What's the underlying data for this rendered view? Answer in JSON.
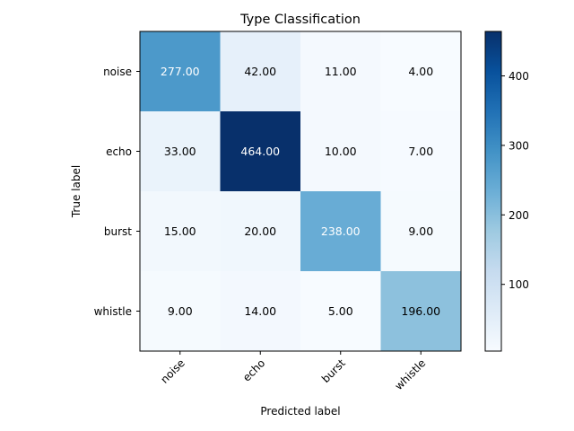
{
  "chart_data": {
    "type": "heatmap",
    "title": "Type Classification",
    "xlabel": "Predicted label",
    "ylabel": "True label",
    "x_categories": [
      "noise",
      "echo",
      "burst",
      "whistle"
    ],
    "y_categories": [
      "noise",
      "echo",
      "burst",
      "whistle"
    ],
    "values": [
      [
        277,
        42,
        11,
        4
      ],
      [
        33,
        464,
        10,
        7
      ],
      [
        15,
        20,
        238,
        9
      ],
      [
        9,
        14,
        5,
        196
      ]
    ],
    "cell_labels": [
      [
        "277.00",
        "42.00",
        "11.00",
        "4.00"
      ],
      [
        "33.00",
        "464.00",
        "10.00",
        "7.00"
      ],
      [
        "15.00",
        "20.00",
        "238.00",
        "9.00"
      ],
      [
        "9.00",
        "14.00",
        "5.00",
        "196.00"
      ]
    ],
    "colormap": "Blues",
    "color_range": [
      4,
      464
    ],
    "colorbar_ticks": [
      "100",
      "200",
      "300",
      "400"
    ],
    "colorbar_tick_values": [
      100,
      200,
      300,
      400
    ],
    "grid": false
  }
}
